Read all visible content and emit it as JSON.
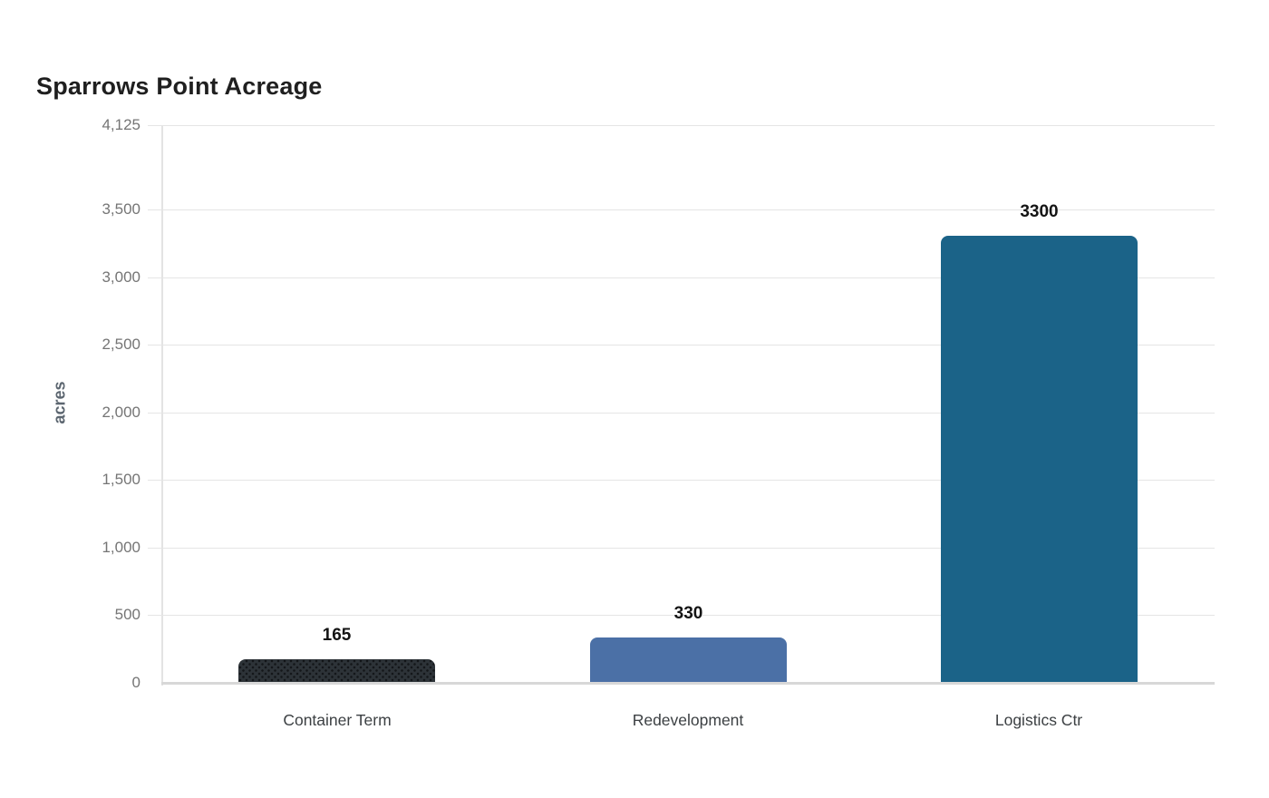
{
  "title": "Sparrows Point Acreage",
  "chart_data": {
    "type": "bar",
    "title": "Sparrows Point Acreage",
    "ylabel": "acres",
    "xlabel": "",
    "categories": [
      "Container Term",
      "Redevelopment",
      "Logistics Ctr"
    ],
    "values": [
      165,
      330,
      3300
    ],
    "value_labels": [
      "165",
      "330",
      "3300"
    ],
    "bar_colors": [
      "#2d3338",
      "#4b70a6",
      "#1b6388"
    ],
    "bar_patterns": [
      "dots",
      "solid",
      "solid"
    ],
    "ylim": [
      0,
      4125
    ],
    "yticks": [
      0,
      500,
      1000,
      1500,
      2000,
      2500,
      3000,
      3500,
      4125
    ],
    "ytick_labels": [
      "0",
      "500",
      "1,000",
      "1,500",
      "2,000",
      "2,500",
      "3,000",
      "3,500",
      "4,125"
    ],
    "grid": "horizontal gridlines on",
    "legend_position": "none"
  },
  "colors": {
    "background": "#ffffff",
    "title_text": "#1f1f1f",
    "tick_text": "#757575",
    "axis_title_text": "#5c6670",
    "category_text": "#3c4043",
    "value_label_text": "#141414",
    "gridline": "#e5e5e5",
    "axis_line": "#e3e3e3",
    "baseline": "#d8d8d8",
    "bar_dot_pattern": "#14171a"
  }
}
